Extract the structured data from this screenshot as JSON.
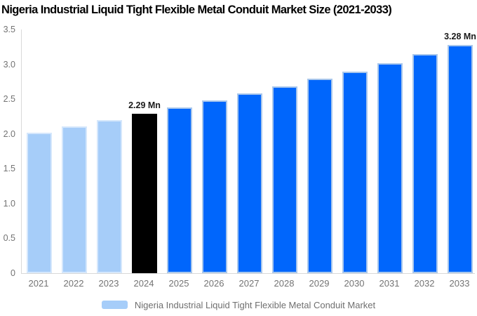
{
  "chart_data": {
    "type": "bar",
    "title": "Nigeria Industrial Liquid Tight Flexible Metal Conduit Market Size (2021-2033)",
    "xlabel": "",
    "ylabel": "",
    "unit": "Mn",
    "ylim": [
      0,
      3.5
    ],
    "yticks": [
      "3.5",
      "3.0",
      "2.5",
      "2.0",
      "1.5",
      "1.0",
      "0.5",
      "0"
    ],
    "grid": false,
    "legend_position": "bottom",
    "legend": [
      "Nigeria Industrial Liquid Tight Flexible Metal Conduit Market"
    ],
    "legend_swatch_color": "#A6CDF9",
    "categories": [
      "2021",
      "2022",
      "2023",
      "2024",
      "2025",
      "2026",
      "2027",
      "2028",
      "2029",
      "2030",
      "2031",
      "2032",
      "2033"
    ],
    "values": [
      2.02,
      2.11,
      2.2,
      2.29,
      2.38,
      2.48,
      2.58,
      2.68,
      2.79,
      2.9,
      3.02,
      3.15,
      3.28
    ],
    "data_labels": [
      null,
      null,
      null,
      "2.29 Mn",
      null,
      null,
      null,
      null,
      null,
      null,
      null,
      null,
      "3.28 Mn"
    ],
    "bar_colors": [
      "#A6CDF9",
      "#A6CDF9",
      "#A6CDF9",
      "#000000",
      "#0066FC",
      "#0066FC",
      "#0066FC",
      "#0066FC",
      "#0066FC",
      "#0066FC",
      "#0066FC",
      "#0066FC",
      "#0066FC"
    ],
    "bar_border_colors": [
      "#D5E7FC",
      "#D5E7FC",
      "#D5E7FC",
      "#000000",
      "#A9C7EC",
      "#A9C7EC",
      "#A9C7EC",
      "#A9C7EC",
      "#A9C7EC",
      "#A9C7EC",
      "#A9C7EC",
      "#A9C7EC",
      "#A9C7EC"
    ],
    "colors": {
      "historical_bar": "#A6CDF9",
      "highlight_bar": "#000000",
      "forecast_bar": "#0066FC",
      "axis_line": "#D9D9D9",
      "tick_text": "#737373",
      "value_label_text": "#1A1A1A",
      "title_text": "#000000",
      "background": "#FFFFFF"
    }
  }
}
